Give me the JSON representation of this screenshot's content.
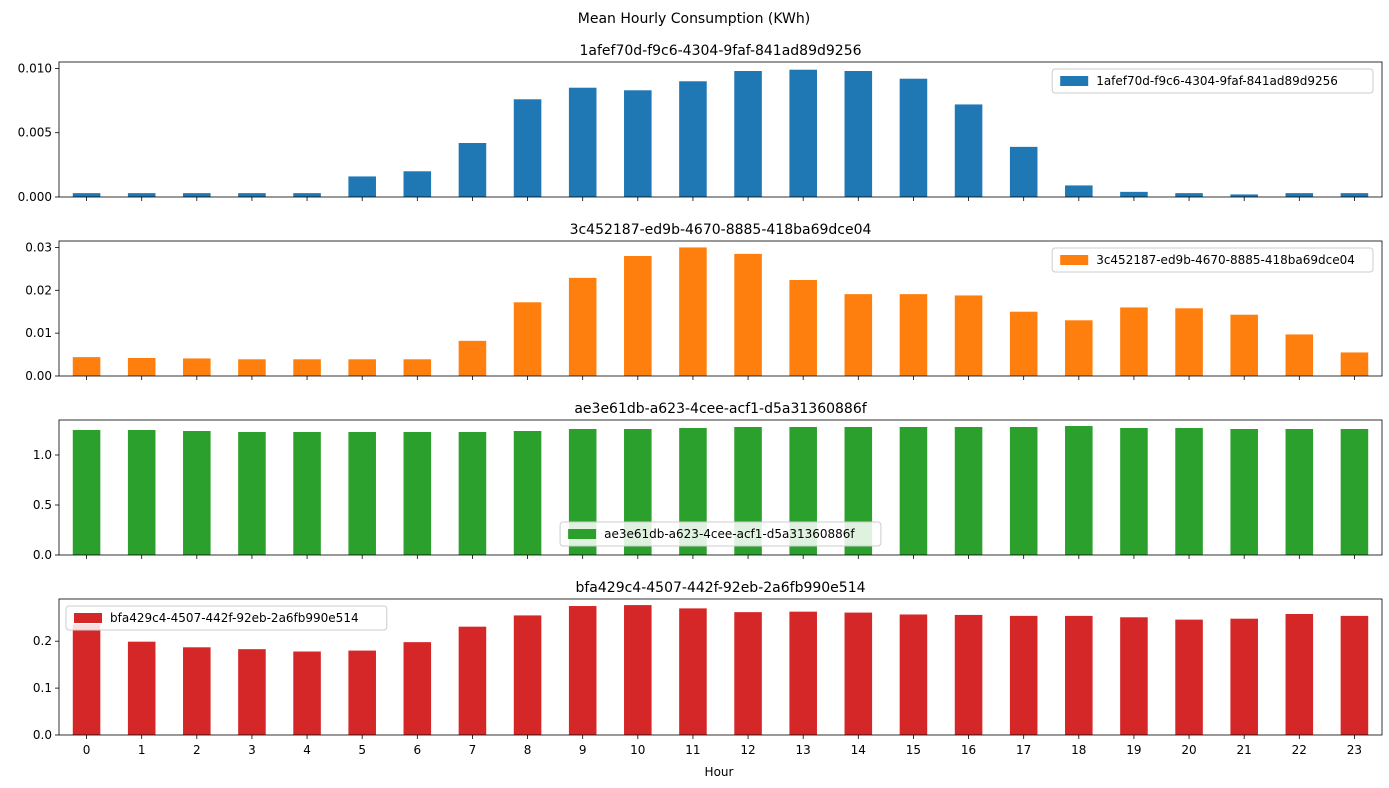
{
  "figure_title": "Mean Hourly Consumption (KWh)",
  "xlabel": "Hour",
  "chart_data": [
    {
      "type": "bar",
      "title": "1afef70d-f9c6-4304-9faf-841ad89d9256",
      "legend": "1afef70d-f9c6-4304-9faf-841ad89d9256",
      "legend_position": "upper right",
      "color": "#1f77b4",
      "categories": [
        "0",
        "1",
        "2",
        "3",
        "4",
        "5",
        "6",
        "7",
        "8",
        "9",
        "10",
        "11",
        "12",
        "13",
        "14",
        "15",
        "16",
        "17",
        "18",
        "19",
        "20",
        "21",
        "22",
        "23"
      ],
      "values": [
        0.0003,
        0.0003,
        0.0003,
        0.0003,
        0.0003,
        0.0016,
        0.002,
        0.0042,
        0.0076,
        0.0085,
        0.0083,
        0.009,
        0.0098,
        0.0099,
        0.0098,
        0.0092,
        0.0072,
        0.0039,
        0.0009,
        0.0004,
        0.0003,
        0.0002,
        0.0003,
        0.0003
      ],
      "ylim": [
        0,
        0.0105
      ],
      "yticks": [
        0,
        0.005,
        0.01
      ],
      "ytick_labels": [
        "0.000",
        "0.005",
        "0.010"
      ],
      "xlabel": "",
      "ylabel": ""
    },
    {
      "type": "bar",
      "title": "3c452187-ed9b-4670-8885-418ba69dce04",
      "legend": "3c452187-ed9b-4670-8885-418ba69dce04",
      "legend_position": "upper right",
      "color": "#ff7f0e",
      "categories": [
        "0",
        "1",
        "2",
        "3",
        "4",
        "5",
        "6",
        "7",
        "8",
        "9",
        "10",
        "11",
        "12",
        "13",
        "14",
        "15",
        "16",
        "17",
        "18",
        "19",
        "20",
        "21",
        "22",
        "23"
      ],
      "values": [
        0.0044,
        0.0042,
        0.0041,
        0.0039,
        0.0039,
        0.0039,
        0.0039,
        0.0082,
        0.0172,
        0.0229,
        0.028,
        0.03,
        0.0285,
        0.0224,
        0.0191,
        0.0191,
        0.0188,
        0.015,
        0.013,
        0.016,
        0.0158,
        0.0143,
        0.0097,
        0.0055
      ],
      "ylim": [
        0,
        0.0315
      ],
      "yticks": [
        0,
        0.01,
        0.02,
        0.03
      ],
      "ytick_labels": [
        "0.00",
        "0.01",
        "0.02",
        "0.03"
      ],
      "xlabel": "",
      "ylabel": ""
    },
    {
      "type": "bar",
      "title": "ae3e61db-a623-4cee-acf1-d5a31360886f",
      "legend": "ae3e61db-a623-4cee-acf1-d5a31360886f",
      "legend_position": "lower center",
      "color": "#2ca02c",
      "categories": [
        "0",
        "1",
        "2",
        "3",
        "4",
        "5",
        "6",
        "7",
        "8",
        "9",
        "10",
        "11",
        "12",
        "13",
        "14",
        "15",
        "16",
        "17",
        "18",
        "19",
        "20",
        "21",
        "22",
        "23"
      ],
      "values": [
        1.25,
        1.25,
        1.24,
        1.23,
        1.23,
        1.23,
        1.23,
        1.23,
        1.24,
        1.26,
        1.26,
        1.27,
        1.28,
        1.28,
        1.28,
        1.28,
        1.28,
        1.28,
        1.29,
        1.27,
        1.27,
        1.26,
        1.26,
        1.26
      ],
      "ylim": [
        0,
        1.35
      ],
      "yticks": [
        0,
        0.5,
        1.0
      ],
      "ytick_labels": [
        "0.0",
        "0.5",
        "1.0"
      ],
      "xlabel": "",
      "ylabel": ""
    },
    {
      "type": "bar",
      "title": "bfa429c4-4507-442f-92eb-2a6fb990e514",
      "legend": "bfa429c4-4507-442f-92eb-2a6fb990e514",
      "legend_position": "upper left",
      "color": "#d62728",
      "categories": [
        "0",
        "1",
        "2",
        "3",
        "4",
        "5",
        "6",
        "7",
        "8",
        "9",
        "10",
        "11",
        "12",
        "13",
        "14",
        "15",
        "16",
        "17",
        "18",
        "19",
        "20",
        "21",
        "22",
        "23"
      ],
      "values": [
        0.236,
        0.199,
        0.187,
        0.183,
        0.178,
        0.18,
        0.198,
        0.231,
        0.255,
        0.275,
        0.277,
        0.27,
        0.262,
        0.263,
        0.261,
        0.257,
        0.256,
        0.254,
        0.254,
        0.251,
        0.246,
        0.248,
        0.258,
        0.254
      ],
      "ylim": [
        0,
        0.29
      ],
      "yticks": [
        0,
        0.1,
        0.2
      ],
      "ytick_labels": [
        "0.0",
        "0.1",
        "0.2"
      ],
      "xlabel": "Hour",
      "ylabel": ""
    }
  ]
}
